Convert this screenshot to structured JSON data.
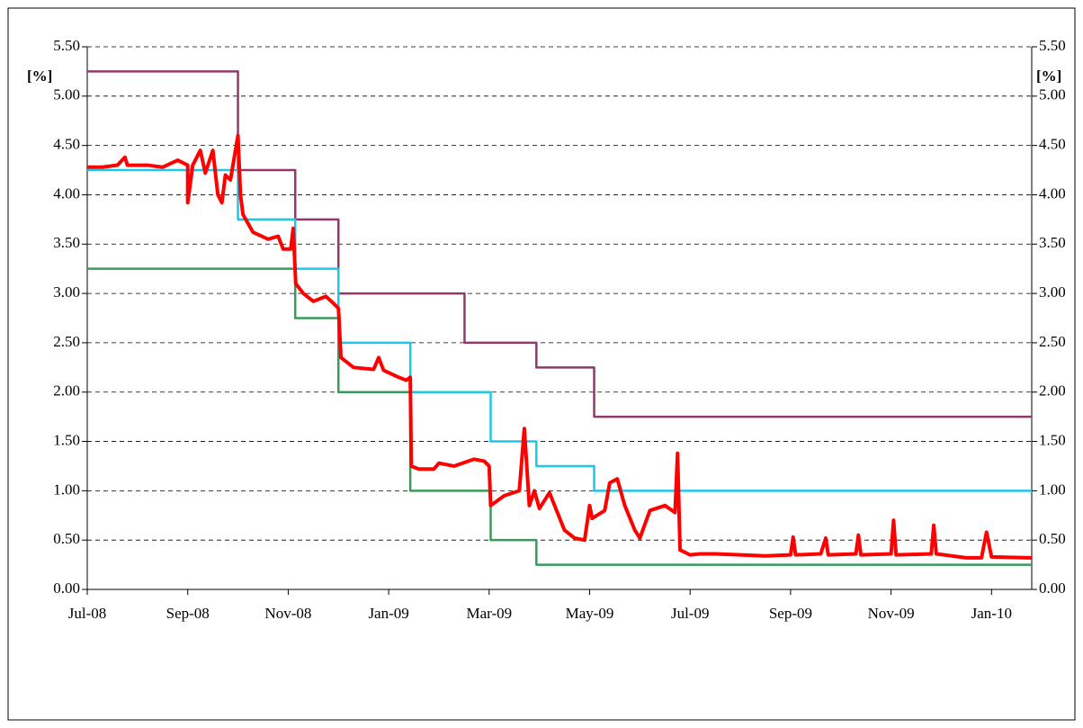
{
  "chart_data": {
    "type": "line",
    "y_label": "[%]",
    "y2_label": "[%]",
    "xlim": [
      0,
      18.8
    ],
    "xticks": [
      {
        "value": 0,
        "label": "Jul-08"
      },
      {
        "value": 2,
        "label": "Sep-08"
      },
      {
        "value": 4,
        "label": "Nov-08"
      },
      {
        "value": 6,
        "label": "Jan-09"
      },
      {
        "value": 8,
        "label": "Mar-09"
      },
      {
        "value": 10,
        "label": "May-09"
      },
      {
        "value": 12,
        "label": "Jul-09"
      },
      {
        "value": 14,
        "label": "Sep-09"
      },
      {
        "value": 16,
        "label": "Nov-09"
      },
      {
        "value": 18,
        "label": "Jan-10"
      }
    ],
    "ylim": [
      0,
      5.5
    ],
    "yticks": [
      {
        "value": 0,
        "label": "0.00"
      },
      {
        "value": 0.5,
        "label": "0.50"
      },
      {
        "value": 1,
        "label": "1.00"
      },
      {
        "value": 1.5,
        "label": "1.50"
      },
      {
        "value": 2,
        "label": "2.00"
      },
      {
        "value": 2.5,
        "label": "2.50"
      },
      {
        "value": 3,
        "label": "3.00"
      },
      {
        "value": 3.5,
        "label": "3.50"
      },
      {
        "value": 4,
        "label": "4.00"
      },
      {
        "value": 4.5,
        "label": "4.50"
      },
      {
        "value": 5,
        "label": "5.00"
      },
      {
        "value": 5.5,
        "label": "5.50"
      }
    ],
    "y2lim": [
      0,
      5.5
    ],
    "y2ticks": [
      {
        "value": 0,
        "label": "0.00"
      },
      {
        "value": 0.5,
        "label": "0.50"
      },
      {
        "value": 1,
        "label": "1.00"
      },
      {
        "value": 1.5,
        "label": "1.50"
      },
      {
        "value": 2,
        "label": "2.00"
      },
      {
        "value": 2.5,
        "label": "2.50"
      },
      {
        "value": 3,
        "label": "3.00"
      },
      {
        "value": 3.5,
        "label": "3.50"
      },
      {
        "value": 4,
        "label": "4.00"
      },
      {
        "value": 4.5,
        "label": "4.50"
      },
      {
        "value": 5,
        "label": "5.00"
      },
      {
        "value": 5.5,
        "label": "5.50"
      }
    ],
    "grid": true,
    "series": [
      {
        "color": "#93386b",
        "width": 2.5,
        "x": [
          0,
          3.0,
          3.0,
          4.14,
          4.14,
          5.0,
          5.0,
          7.51,
          7.51,
          8.94,
          8.94,
          10.09,
          10.09,
          18.8
        ],
        "values": [
          5.25,
          5.25,
          4.25,
          4.25,
          3.75,
          3.75,
          3.0,
          3.0,
          2.5,
          2.5,
          2.25,
          2.25,
          1.75,
          1.75
        ]
      },
      {
        "color": "#1ec6ea",
        "width": 2.5,
        "x": [
          0,
          3.0,
          3.0,
          4.14,
          4.14,
          5.0,
          5.0,
          6.43,
          6.43,
          8.03,
          8.03,
          8.94,
          8.94,
          10.09,
          10.09,
          18.8
        ],
        "values": [
          4.25,
          4.25,
          3.75,
          3.75,
          3.25,
          3.25,
          2.5,
          2.5,
          2.0,
          2.0,
          1.5,
          1.5,
          1.25,
          1.25,
          1.0,
          1.0
        ]
      },
      {
        "color": "#3a9a5b",
        "width": 2.5,
        "x": [
          0,
          4.14,
          4.14,
          5.0,
          5.0,
          6.43,
          6.43,
          8.03,
          8.03,
          8.94,
          8.94,
          18.8
        ],
        "values": [
          3.25,
          3.25,
          2.75,
          2.75,
          2.0,
          2.0,
          1.0,
          1.0,
          0.5,
          0.5,
          0.25,
          0.25
        ]
      },
      {
        "color": "#ff0000",
        "width": 4,
        "x": [
          0,
          0.3,
          0.6,
          0.75,
          0.8,
          1.2,
          1.5,
          1.8,
          2.0,
          2.0,
          2.1,
          2.25,
          2.35,
          2.5,
          2.6,
          2.68,
          2.75,
          2.85,
          2.95,
          3.0,
          3.05,
          3.1,
          3.3,
          3.6,
          3.8,
          3.9,
          4.05,
          4.1,
          4.15,
          4.3,
          4.5,
          4.75,
          4.9,
          5.0,
          5.05,
          5.3,
          5.7,
          5.8,
          5.9,
          6.2,
          6.35,
          6.43,
          6.45,
          6.6,
          6.9,
          7.0,
          7.3,
          7.7,
          7.9,
          8.0,
          8.03,
          8.3,
          8.6,
          8.7,
          8.8,
          8.9,
          9.0,
          9.2,
          9.5,
          9.7,
          9.9,
          10.0,
          10.05,
          10.3,
          10.4,
          10.55,
          10.7,
          10.9,
          11.0,
          11.2,
          11.5,
          11.7,
          11.75,
          11.8,
          12.0,
          12.2,
          12.5,
          13.0,
          13.5,
          14.0,
          14.05,
          14.1,
          14.6,
          14.7,
          14.75,
          15.3,
          15.35,
          15.4,
          16.0,
          16.05,
          16.1,
          16.8,
          16.85,
          16.9,
          17.5,
          17.8,
          17.9,
          18.0,
          18.8
        ],
        "values": [
          4.28,
          4.28,
          4.3,
          4.38,
          4.3,
          4.3,
          4.28,
          4.35,
          4.3,
          3.92,
          4.3,
          4.45,
          4.22,
          4.45,
          4.0,
          3.92,
          4.2,
          4.15,
          4.45,
          4.6,
          4.0,
          3.8,
          3.62,
          3.55,
          3.58,
          3.45,
          3.45,
          3.66,
          3.1,
          3.0,
          2.92,
          2.97,
          2.9,
          2.85,
          2.35,
          2.25,
          2.23,
          2.35,
          2.22,
          2.15,
          2.12,
          2.15,
          1.25,
          1.22,
          1.22,
          1.28,
          1.25,
          1.32,
          1.3,
          1.25,
          0.85,
          0.95,
          1.0,
          1.63,
          0.85,
          1.0,
          0.82,
          0.98,
          0.6,
          0.52,
          0.5,
          0.85,
          0.72,
          0.8,
          1.08,
          1.12,
          0.85,
          0.6,
          0.52,
          0.8,
          0.85,
          0.78,
          1.38,
          0.4,
          0.35,
          0.36,
          0.36,
          0.35,
          0.34,
          0.35,
          0.53,
          0.35,
          0.36,
          0.52,
          0.35,
          0.36,
          0.55,
          0.35,
          0.36,
          0.7,
          0.35,
          0.36,
          0.65,
          0.36,
          0.32,
          0.32,
          0.58,
          0.33,
          0.32
        ]
      }
    ]
  }
}
